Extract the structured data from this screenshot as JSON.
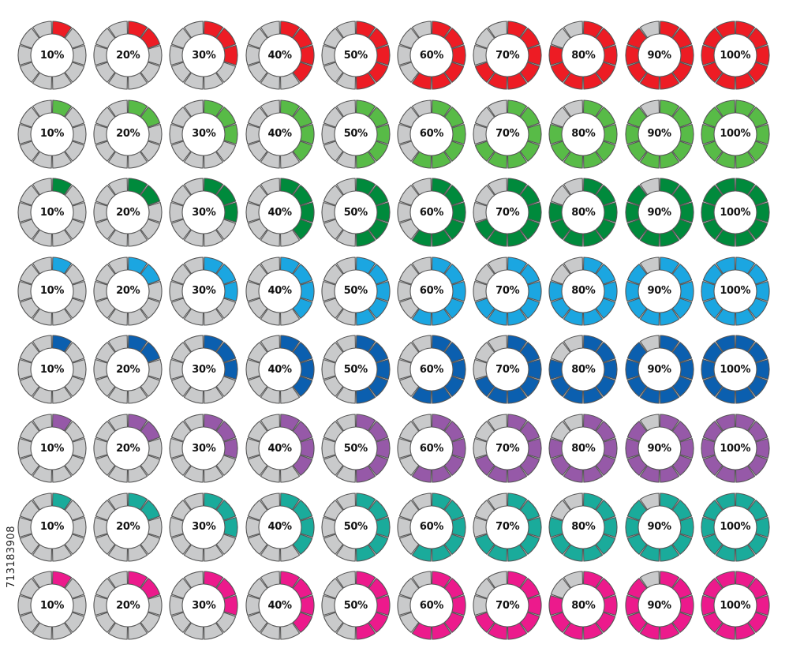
{
  "segments_per_ring": 10,
  "track_color": "#c9cacb",
  "segment_outline_color": "#555555",
  "percent_labels": [
    "10%",
    "20%",
    "30%",
    "40%",
    "50%",
    "60%",
    "70%",
    "80%",
    "90%",
    "100%"
  ],
  "fill_levels": [
    0.1,
    0.2,
    0.3,
    0.4,
    0.5,
    0.6,
    0.7,
    0.8,
    0.9,
    1.0
  ],
  "rows": [
    {
      "name": "red",
      "color": "#ed1c24"
    },
    {
      "name": "light-green",
      "color": "#58bb47"
    },
    {
      "name": "dark-green",
      "color": "#008a3c"
    },
    {
      "name": "light-blue",
      "color": "#1ba6e1"
    },
    {
      "name": "dark-blue",
      "color": "#0b5faf"
    },
    {
      "name": "purple",
      "color": "#9659a8"
    },
    {
      "name": "teal",
      "color": "#1aab9b"
    },
    {
      "name": "magenta",
      "color": "#ec1a8c"
    }
  ],
  "watermark": {
    "text": "713183908"
  }
}
